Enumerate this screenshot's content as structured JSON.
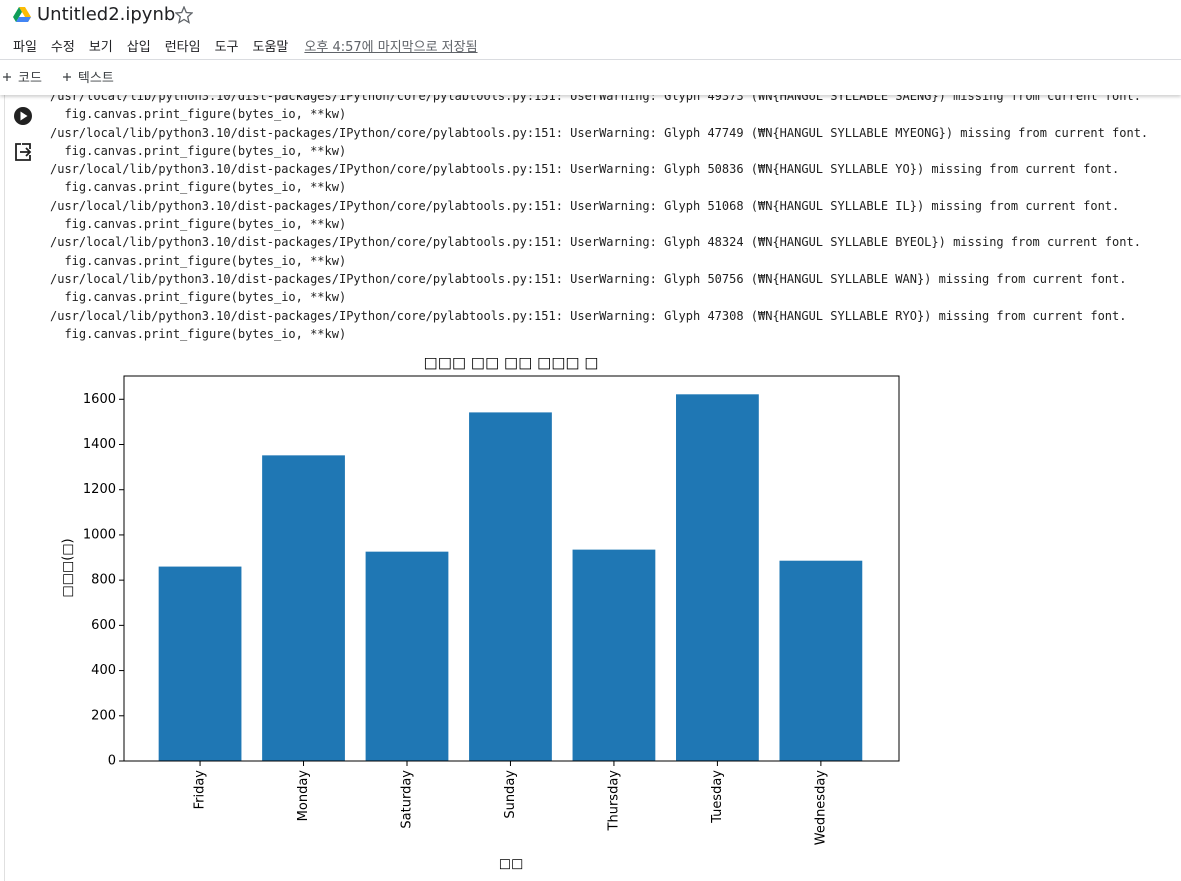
{
  "notebook_title": "Untitled2.ipynb",
  "menu": [
    "파일",
    "수정",
    "보기",
    "삽입",
    "런타임",
    "도구",
    "도움말"
  ],
  "saved_status": "오후 4:57에 마지막으로 저장됨",
  "toolbar": [
    "코드",
    "텍스트"
  ],
  "output_lines": [
    "/usr/local/lib/python3.10/dist-packages/IPython/core/pylabtools.py:151: UserWarning: Glyph 49373 (₩N{HANGUL SYLLABLE SAENG}) missing from current font.",
    "  fig.canvas.print_figure(bytes_io, **kw)",
    "/usr/local/lib/python3.10/dist-packages/IPython/core/pylabtools.py:151: UserWarning: Glyph 47749 (₩N{HANGUL SYLLABLE MYEONG}) missing from current font.",
    "  fig.canvas.print_figure(bytes_io, **kw)",
    "/usr/local/lib/python3.10/dist-packages/IPython/core/pylabtools.py:151: UserWarning: Glyph 50836 (₩N{HANGUL SYLLABLE YO}) missing from current font.",
    "  fig.canvas.print_figure(bytes_io, **kw)",
    "/usr/local/lib/python3.10/dist-packages/IPython/core/pylabtools.py:151: UserWarning: Glyph 51068 (₩N{HANGUL SYLLABLE IL}) missing from current font.",
    "  fig.canvas.print_figure(bytes_io, **kw)",
    "/usr/local/lib/python3.10/dist-packages/IPython/core/pylabtools.py:151: UserWarning: Glyph 48324 (₩N{HANGUL SYLLABLE BYEOL}) missing from current font.",
    "  fig.canvas.print_figure(bytes_io, **kw)",
    "/usr/local/lib/python3.10/dist-packages/IPython/core/pylabtools.py:151: UserWarning: Glyph 50756 (₩N{HANGUL SYLLABLE WAN}) missing from current font.",
    "  fig.canvas.print_figure(bytes_io, **kw)",
    "/usr/local/lib/python3.10/dist-packages/IPython/core/pylabtools.py:151: UserWarning: Glyph 47308 (₩N{HANGUL SYLLABLE RYO}) missing from current font.",
    "  fig.canvas.print_figure(bytes_io, **kw)"
  ],
  "chart_data": {
    "type": "bar",
    "title": "□□□ □□ □□ □□□ □",
    "x_label": "□□",
    "y_label": "□□□(□)",
    "categories": [
      "Friday",
      "Monday",
      "Saturday",
      "Sunday",
      "Thursday",
      "Tuesday",
      "Wednesday"
    ],
    "values": [
      860,
      1352,
      926,
      1542,
      935,
      1622,
      886
    ],
    "color": "#1f77b4",
    "ylim": [
      0,
      1703
    ],
    "yticks": [
      0,
      200,
      400,
      600,
      800,
      1000,
      1200,
      1400,
      1600
    ],
    "grid": false
  }
}
